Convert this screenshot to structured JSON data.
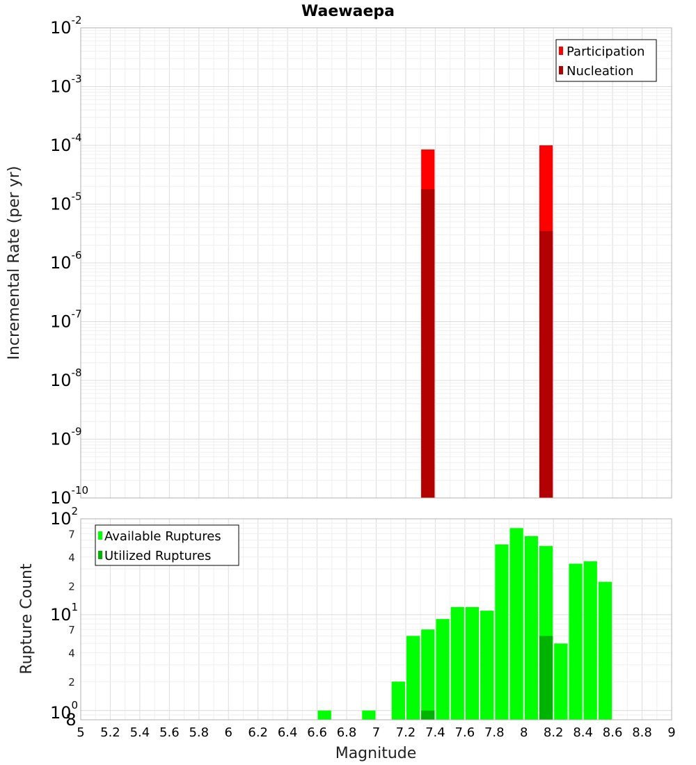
{
  "chart_data": [
    {
      "type": "bar",
      "title": "Waewaepa",
      "xlabel": "",
      "ylabel": "Incremental Rate (per yr)",
      "yscale": "log",
      "xlim": [
        5,
        9
      ],
      "ylim": [
        1e-10,
        0.01
      ],
      "y_ticks": [
        {
          "base": "10",
          "exp": "-2"
        },
        {
          "base": "10",
          "exp": "-3"
        },
        {
          "base": "10",
          "exp": "-4"
        },
        {
          "base": "10",
          "exp": "-5"
        },
        {
          "base": "10",
          "exp": "-6"
        },
        {
          "base": "10",
          "exp": "-7"
        },
        {
          "base": "10",
          "exp": "-8"
        },
        {
          "base": "10",
          "exp": "-9"
        },
        {
          "base": "10",
          "exp": "-10"
        }
      ],
      "bar_width": 0.1,
      "grid": true,
      "legend_position": "top-right",
      "series": [
        {
          "name": "Participation",
          "color": "#ff0000",
          "x": [
            7.35,
            8.15
          ],
          "values": [
            8.5e-05,
            0.0001
          ]
        },
        {
          "name": "Nucleation",
          "color": "#b30000",
          "x": [
            7.35,
            8.15
          ],
          "values": [
            1.8e-05,
            3.5e-06
          ]
        }
      ]
    },
    {
      "type": "bar",
      "title": "",
      "xlabel": "Magnitude",
      "ylabel": "Rupture Count",
      "yscale": "log",
      "xlim": [
        5,
        9
      ],
      "ylim": [
        0.8,
        100
      ],
      "x_ticks": [
        "5",
        "5.2",
        "5.4",
        "5.6",
        "5.8",
        "6",
        "6.2",
        "6.4",
        "6.6",
        "6.8",
        "7",
        "7.2",
        "7.4",
        "7.6",
        "7.8",
        "8",
        "8.2",
        "8.4",
        "8.6",
        "8.8",
        "9"
      ],
      "y_ticks": [
        {
          "base": "10",
          "exp": "2"
        },
        {
          "base": "10",
          "exp": "1"
        },
        {
          "base": "10",
          "exp": "0"
        }
      ],
      "y_minor_labels": [
        "7",
        "4",
        "2",
        "7",
        "4",
        "2",
        "8"
      ],
      "bar_width": 0.1,
      "grid": true,
      "legend_position": "top-left",
      "series": [
        {
          "name": "Available Ruptures",
          "color": "#00ff00",
          "x": [
            6.65,
            6.95,
            7.15,
            7.25,
            7.35,
            7.45,
            7.55,
            7.65,
            7.75,
            7.85,
            7.95,
            8.05,
            8.15,
            8.25,
            8.35,
            8.45,
            8.55
          ],
          "values": [
            1,
            1,
            2,
            6,
            7,
            9,
            12,
            12,
            11,
            54,
            80,
            66,
            52,
            5,
            34,
            36,
            22
          ]
        },
        {
          "name": "Utilized Ruptures",
          "color": "#00b300",
          "x": [
            7.35,
            8.15
          ],
          "values": [
            1,
            6
          ]
        }
      ]
    }
  ]
}
